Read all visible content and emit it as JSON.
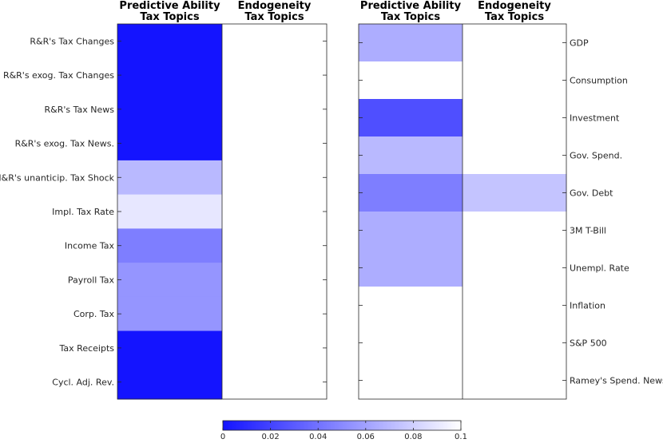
{
  "colorscale": {
    "low": "#1414ff",
    "high": "#ffffff",
    "min": 0,
    "max": 0.1,
    "ticks": [
      "0",
      "0.02",
      "0.04",
      "0.06",
      "0.08",
      "0.1"
    ]
  },
  "chart_data": [
    {
      "type": "heatmap",
      "columns": [
        "Predictive Ability\nTax Topics",
        "Endogeneity\nTax Topics"
      ],
      "rows": [
        "R&R's Tax Changes",
        "R&R's exog. Tax Changes",
        "R&R's Tax News",
        "R&R's exog. Tax News.",
        "M&R's unanticip. Tax Shock",
        "Impl. Tax Rate",
        "Income Tax",
        "Payroll Tax",
        "Corp. Tax",
        "Tax Receipts",
        "Cycl. Adj. Rev."
      ],
      "values": [
        [
          0.0,
          0.1
        ],
        [
          0.0,
          0.1
        ],
        [
          0.0,
          0.1
        ],
        [
          0.0,
          0.1
        ],
        [
          0.07,
          0.1
        ],
        [
          0.09,
          0.1
        ],
        [
          0.045,
          0.1
        ],
        [
          0.055,
          0.1
        ],
        [
          0.055,
          0.1
        ],
        [
          0.0,
          0.1
        ],
        [
          0.0,
          0.1
        ]
      ],
      "colorbar_range": [
        0,
        0.1
      ]
    },
    {
      "type": "heatmap",
      "columns": [
        "Predictive Ability\nTax Topics",
        "Endogeneity\nTax Topics"
      ],
      "rows": [
        "GDP",
        "Consumption",
        "Investment",
        "Gov. Spend.",
        "Gov. Debt",
        "3M T-Bill",
        "Unempl. Rate",
        "Inflation",
        "S&P 500",
        "Ramey's Spend. News"
      ],
      "values": [
        [
          0.065,
          0.1
        ],
        [
          0.1,
          0.1
        ],
        [
          0.025,
          0.1
        ],
        [
          0.07,
          0.1
        ],
        [
          0.045,
          0.075
        ],
        [
          0.065,
          0.1
        ],
        [
          0.065,
          0.1
        ],
        [
          0.1,
          0.1
        ],
        [
          0.1,
          0.1
        ],
        [
          0.1,
          0.1
        ]
      ],
      "colorbar_range": [
        0,
        0.1
      ]
    }
  ]
}
